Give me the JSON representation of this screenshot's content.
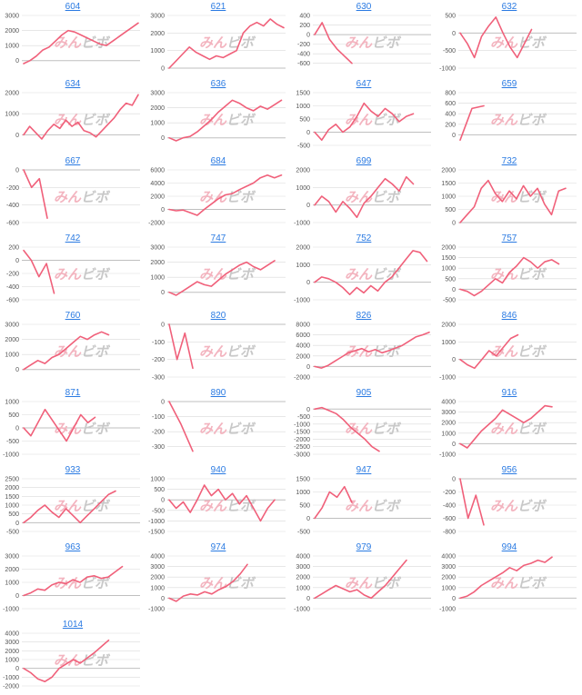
{
  "watermark": {
    "left": "みん",
    "right": "ビボ"
  },
  "colors": {
    "line": "#f0607a",
    "grid": "#d9d9d9",
    "axis": "#bfbfbf",
    "link": "#2a7ae2",
    "wm_left": "#f3b4bf",
    "wm_right": "#c8c8c8"
  },
  "chart_data": [
    {
      "title": "604",
      "type": "line",
      "ylim": [
        -500,
        3000
      ],
      "yticks": [
        3000,
        2000,
        1000,
        0
      ],
      "values": [
        -200,
        0,
        300,
        700,
        900,
        1300,
        1700,
        2000,
        1900,
        1700,
        1500,
        1300,
        1100,
        1000,
        1300,
        1600,
        1900,
        2200,
        2500
      ]
    },
    {
      "title": "621",
      "type": "line",
      "ylim": [
        0,
        3000
      ],
      "yticks": [
        3000,
        2000,
        1000,
        0
      ],
      "values": [
        0,
        400,
        800,
        1200,
        900,
        700,
        500,
        700,
        600,
        800,
        1000,
        2000,
        2400,
        2600,
        2400,
        2800,
        2500,
        2300
      ]
    },
    {
      "title": "630",
      "type": "line",
      "ylim": [
        -700,
        400
      ],
      "yticks": [
        400,
        200,
        0,
        -200,
        -400,
        -600
      ],
      "values": [
        0,
        250,
        -100,
        -300,
        -450,
        -600
      ]
    },
    {
      "title": "632",
      "type": "line",
      "ylim": [
        -1000,
        500
      ],
      "yticks": [
        500,
        0,
        -500,
        -1000
      ],
      "values": [
        0,
        -300,
        -700,
        -100,
        200,
        450,
        0,
        -400,
        -700,
        -300,
        100
      ]
    },
    {
      "title": "634",
      "type": "line",
      "ylim": [
        -500,
        2000
      ],
      "yticks": [
        2000,
        1000,
        0
      ],
      "values": [
        0,
        400,
        100,
        -200,
        200,
        500,
        300,
        700,
        400,
        600,
        200,
        100,
        -100,
        200,
        500,
        800,
        1200,
        1500,
        1400,
        1900
      ]
    },
    {
      "title": "636",
      "type": "line",
      "ylim": [
        -500,
        3000
      ],
      "yticks": [
        3000,
        2000,
        1000,
        0
      ],
      "values": [
        0,
        -200,
        0,
        100,
        400,
        800,
        1200,
        1700,
        2100,
        2500,
        2300,
        2000,
        1800,
        2100,
        1900,
        2200,
        2500
      ]
    },
    {
      "title": "647",
      "type": "line",
      "ylim": [
        -500,
        1500
      ],
      "yticks": [
        1500,
        1000,
        500,
        0,
        -500
      ],
      "values": [
        0,
        -300,
        100,
        300,
        0,
        200,
        600,
        1100,
        800,
        600,
        900,
        700,
        400,
        600,
        700
      ]
    },
    {
      "title": "659",
      "type": "line",
      "ylim": [
        -200,
        800
      ],
      "yticks": [
        800,
        600,
        400,
        200,
        0
      ],
      "values": [
        -100,
        500,
        550
      ]
    },
    {
      "title": "667",
      "type": "line",
      "ylim": [
        -600,
        0
      ],
      "yticks": [
        0,
        -200,
        -400,
        -600
      ],
      "values": [
        0,
        -200,
        -100,
        -550
      ]
    },
    {
      "title": "684",
      "type": "line",
      "ylim": [
        -2000,
        6000
      ],
      "yticks": [
        6000,
        4000,
        2000,
        0,
        -2000
      ],
      "values": [
        0,
        -200,
        -100,
        -500,
        -900,
        0,
        800,
        1600,
        2200,
        2400,
        3000,
        3500,
        4000,
        4800,
        5200,
        4800,
        5200
      ]
    },
    {
      "title": "699",
      "type": "line",
      "ylim": [
        -1000,
        2000
      ],
      "yticks": [
        2000,
        1000,
        0,
        -1000
      ],
      "values": [
        0,
        500,
        200,
        -400,
        200,
        -200,
        -700,
        100,
        500,
        1000,
        1500,
        1200,
        800,
        1600,
        1200
      ]
    },
    {
      "title": "732",
      "type": "line",
      "ylim": [
        0,
        2000
      ],
      "yticks": [
        2000,
        1500,
        1000,
        500,
        0
      ],
      "values": [
        0,
        300,
        600,
        1300,
        1600,
        1100,
        800,
        1200,
        900,
        1400,
        1000,
        1300,
        700,
        300,
        1200,
        1300
      ]
    },
    {
      "title": "742",
      "type": "line",
      "ylim": [
        -600,
        200
      ],
      "yticks": [
        200,
        0,
        -200,
        -400,
        -600
      ],
      "values": [
        150,
        0,
        -250,
        -50,
        -500
      ]
    },
    {
      "title": "747",
      "type": "line",
      "ylim": [
        -500,
        3000
      ],
      "yticks": [
        3000,
        2000,
        1000,
        0
      ],
      "values": [
        0,
        -200,
        100,
        400,
        700,
        500,
        400,
        800,
        1200,
        1500,
        1800,
        2000,
        1700,
        1500,
        1800,
        2100
      ]
    },
    {
      "title": "752",
      "type": "line",
      "ylim": [
        -1000,
        2000
      ],
      "yticks": [
        2000,
        1000,
        0,
        -1000
      ],
      "values": [
        0,
        300,
        200,
        0,
        -300,
        -700,
        -300,
        -600,
        -200,
        -500,
        0,
        300,
        800,
        1300,
        1800,
        1700,
        1200
      ]
    },
    {
      "title": "757",
      "type": "line",
      "ylim": [
        -500,
        2000
      ],
      "yticks": [
        2000,
        1500,
        1000,
        500,
        0,
        -500
      ],
      "values": [
        0,
        -100,
        -300,
        -100,
        200,
        500,
        300,
        800,
        1100,
        1500,
        1300,
        1000,
        1300,
        1400,
        1200
      ]
    },
    {
      "title": "760",
      "type": "line",
      "ylim": [
        -500,
        3000
      ],
      "yticks": [
        3000,
        2000,
        1000,
        0
      ],
      "values": [
        0,
        300,
        600,
        400,
        800,
        1000,
        1400,
        1800,
        2200,
        2000,
        2300,
        2500,
        2300
      ]
    },
    {
      "title": "820",
      "type": "line",
      "ylim": [
        -300,
        0
      ],
      "yticks": [
        0,
        -100,
        -200,
        -300
      ],
      "values": [
        0,
        -200,
        -50,
        -250
      ]
    },
    {
      "title": "826",
      "type": "line",
      "ylim": [
        -2000,
        8000
      ],
      "yticks": [
        8000,
        6000,
        4000,
        2000,
        0,
        -2000
      ],
      "values": [
        0,
        -300,
        200,
        1000,
        1800,
        2600,
        3000,
        3400,
        2800,
        3200,
        2600,
        3000,
        3500,
        4000,
        4800,
        5600,
        6000,
        6500
      ]
    },
    {
      "title": "846",
      "type": "line",
      "ylim": [
        -1000,
        2000
      ],
      "yticks": [
        2000,
        1000,
        0,
        -1000
      ],
      "values": [
        0,
        -300,
        -500,
        0,
        500,
        200,
        700,
        1200,
        1400
      ]
    },
    {
      "title": "871",
      "type": "line",
      "ylim": [
        -1000,
        1000
      ],
      "yticks": [
        1000,
        500,
        0,
        -500,
        -1000
      ],
      "values": [
        0,
        -300,
        200,
        700,
        300,
        -100,
        -500,
        0,
        500,
        200,
        400
      ]
    },
    {
      "title": "890",
      "type": "line",
      "ylim": [
        -350,
        0
      ],
      "yticks": [
        0,
        -100,
        -200,
        -300
      ],
      "values": [
        0,
        -150,
        -330
      ]
    },
    {
      "title": "905",
      "type": "line",
      "ylim": [
        -3000,
        500
      ],
      "yticks": [
        0,
        -500,
        -1000,
        -1500,
        -2000,
        -2500,
        -3000
      ],
      "values": [
        0,
        100,
        -100,
        -300,
        -700,
        -1200,
        -1600,
        -2000,
        -2500,
        -2800
      ]
    },
    {
      "title": "916",
      "type": "line",
      "ylim": [
        -1000,
        4000
      ],
      "yticks": [
        4000,
        3000,
        2000,
        1000,
        0,
        -1000
      ],
      "values": [
        0,
        -400,
        400,
        1200,
        1800,
        2400,
        3200,
        2800,
        2400,
        2000,
        2400,
        3000,
        3600,
        3500
      ]
    },
    {
      "title": "933",
      "type": "line",
      "ylim": [
        -500,
        2500
      ],
      "yticks": [
        2500,
        2000,
        1500,
        1000,
        500,
        0,
        -500
      ],
      "values": [
        0,
        300,
        700,
        1000,
        600,
        300,
        800,
        400,
        0,
        400,
        800,
        1200,
        1600,
        1800
      ]
    },
    {
      "title": "940",
      "type": "line",
      "ylim": [
        -1500,
        1000
      ],
      "yticks": [
        1000,
        500,
        0,
        -500,
        -1000,
        -1500
      ],
      "values": [
        0,
        -400,
        -100,
        -600,
        0,
        700,
        200,
        500,
        0,
        300,
        -200,
        200,
        -400,
        -1000,
        -400,
        0
      ]
    },
    {
      "title": "947",
      "type": "line",
      "ylim": [
        -500,
        1500
      ],
      "yticks": [
        1500,
        1000,
        500,
        0,
        -500
      ],
      "values": [
        0,
        400,
        1000,
        800,
        1200,
        600
      ]
    },
    {
      "title": "956",
      "type": "line",
      "ylim": [
        -800,
        0
      ],
      "yticks": [
        0,
        -200,
        -400,
        -600,
        -800
      ],
      "values": [
        0,
        -600,
        -250,
        -700
      ]
    },
    {
      "title": "963",
      "type": "line",
      "ylim": [
        -1000,
        3000
      ],
      "yticks": [
        3000,
        2000,
        1000,
        0,
        -1000
      ],
      "values": [
        0,
        200,
        500,
        400,
        800,
        1000,
        900,
        1200,
        1000,
        1400,
        1500,
        1300,
        1400,
        1800,
        2200
      ]
    },
    {
      "title": "974",
      "type": "line",
      "ylim": [
        -1000,
        4000
      ],
      "yticks": [
        4000,
        3000,
        2000,
        1000,
        0,
        -1000
      ],
      "values": [
        0,
        -300,
        200,
        400,
        300,
        600,
        400,
        800,
        1100,
        1600,
        2300,
        3200
      ]
    },
    {
      "title": "979",
      "type": "line",
      "ylim": [
        -1000,
        4000
      ],
      "yticks": [
        4000,
        3000,
        2000,
        1000,
        0,
        -1000
      ],
      "values": [
        0,
        400,
        800,
        1200,
        900,
        600,
        800,
        300,
        0,
        600,
        1200,
        2000,
        2800,
        3600
      ]
    },
    {
      "title": "994",
      "type": "line",
      "ylim": [
        -1000,
        4000
      ],
      "yticks": [
        4000,
        3000,
        2000,
        1000,
        0,
        -1000
      ],
      "values": [
        0,
        200,
        600,
        1200,
        1600,
        2000,
        2400,
        2900,
        2600,
        3100,
        3300,
        3600,
        3400,
        3900
      ]
    },
    {
      "title": "1014",
      "type": "line",
      "ylim": [
        -2000,
        4000
      ],
      "yticks": [
        4000,
        3000,
        2000,
        1000,
        0,
        -1000,
        -2000
      ],
      "values": [
        0,
        -500,
        -1200,
        -1500,
        -1000,
        0,
        500,
        1000,
        600,
        1200,
        1800,
        2500,
        3200
      ]
    }
  ]
}
